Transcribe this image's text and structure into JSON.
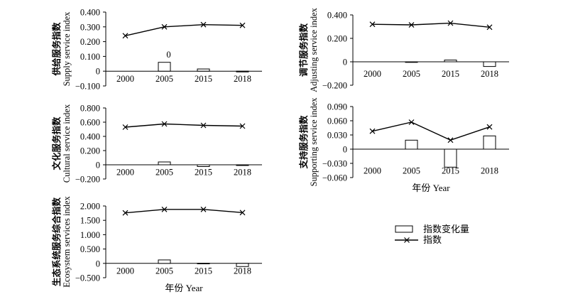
{
  "legend": {
    "bar_label": "指数变化量",
    "line_label": "指数"
  },
  "chart_data": [
    {
      "type": "bar+line",
      "ylabel_cn": "供给服务指数",
      "ylabel_en": "Supply service index",
      "xlabel": "",
      "categories": [
        "2000",
        "2005",
        "2015",
        "2018"
      ],
      "yticks": [
        "0.400",
        "0.300",
        "0.200",
        "0.100",
        "0",
        "−0.100"
      ],
      "ylim": [
        -0.1,
        0.4
      ],
      "series": [
        {
          "name": "指数",
          "kind": "line",
          "values": [
            0.24,
            0.3,
            0.315,
            0.31
          ]
        },
        {
          "name": "指数变化量",
          "kind": "bar",
          "values": [
            null,
            0.06,
            0.015,
            -0.005
          ]
        }
      ],
      "annotations": [
        {
          "text": "0",
          "category": "2005",
          "value": 0.115
        }
      ]
    },
    {
      "type": "bar+line",
      "ylabel_cn": "调节服务指数",
      "ylabel_en": "Adjusting service index",
      "xlabel": "",
      "categories": [
        "2000",
        "2005",
        "2015",
        "2018"
      ],
      "yticks": [
        "0.400",
        "0.200",
        "0",
        "−0.200"
      ],
      "ylim": [
        -0.2,
        0.4
      ],
      "series": [
        {
          "name": "指数",
          "kind": "line",
          "values": [
            0.32,
            0.315,
            0.33,
            0.295
          ]
        },
        {
          "name": "指数变化量",
          "kind": "bar",
          "values": [
            null,
            -0.005,
            0.015,
            -0.04
          ]
        }
      ],
      "annotations": []
    },
    {
      "type": "bar+line",
      "ylabel_cn": "文化服务指数",
      "ylabel_en": "Cultural service index",
      "xlabel": "",
      "categories": [
        "2000",
        "2005",
        "2015",
        "2018"
      ],
      "yticks": [
        "0.800",
        "0.600",
        "0.400",
        "0.200",
        "0",
        "−0.200"
      ],
      "ylim": [
        -0.2,
        0.8
      ],
      "series": [
        {
          "name": "指数",
          "kind": "line",
          "values": [
            0.53,
            0.575,
            0.555,
            0.545
          ]
        },
        {
          "name": "指数变化量",
          "kind": "bar",
          "values": [
            null,
            0.04,
            -0.025,
            -0.01
          ]
        }
      ],
      "annotations": []
    },
    {
      "type": "bar+line",
      "ylabel_cn": "支持服务指数",
      "ylabel_en": "Supporting service index",
      "xlabel": "年份 Year",
      "categories": [
        "2000",
        "2005",
        "2015",
        "2018"
      ],
      "yticks": [
        "0.090",
        "0.060",
        "0.030",
        "0",
        "−0.030",
        "−0.060"
      ],
      "ylim": [
        -0.06,
        0.09
      ],
      "series": [
        {
          "name": "指数",
          "kind": "line",
          "values": [
            0.038,
            0.057,
            0.019,
            0.047
          ]
        },
        {
          "name": "指数变化量",
          "kind": "bar",
          "values": [
            null,
            0.019,
            -0.038,
            0.028
          ]
        }
      ],
      "annotations": []
    },
    {
      "type": "bar+line",
      "ylabel_cn": "生态系统服务综合指数",
      "ylabel_en": "Ecosystem services index",
      "xlabel": "年份 Year",
      "categories": [
        "2000",
        "2005",
        "2015",
        "2018"
      ],
      "yticks": [
        "2.000",
        "1.500",
        "1.000",
        "0.500",
        "0",
        "−0.500"
      ],
      "ylim": [
        -0.5,
        2.0
      ],
      "series": [
        {
          "name": "指数",
          "kind": "line",
          "values": [
            1.76,
            1.88,
            1.88,
            1.77
          ]
        },
        {
          "name": "指数变化量",
          "kind": "bar",
          "values": [
            null,
            0.12,
            0.005,
            -0.11
          ]
        }
      ],
      "annotations": []
    }
  ]
}
